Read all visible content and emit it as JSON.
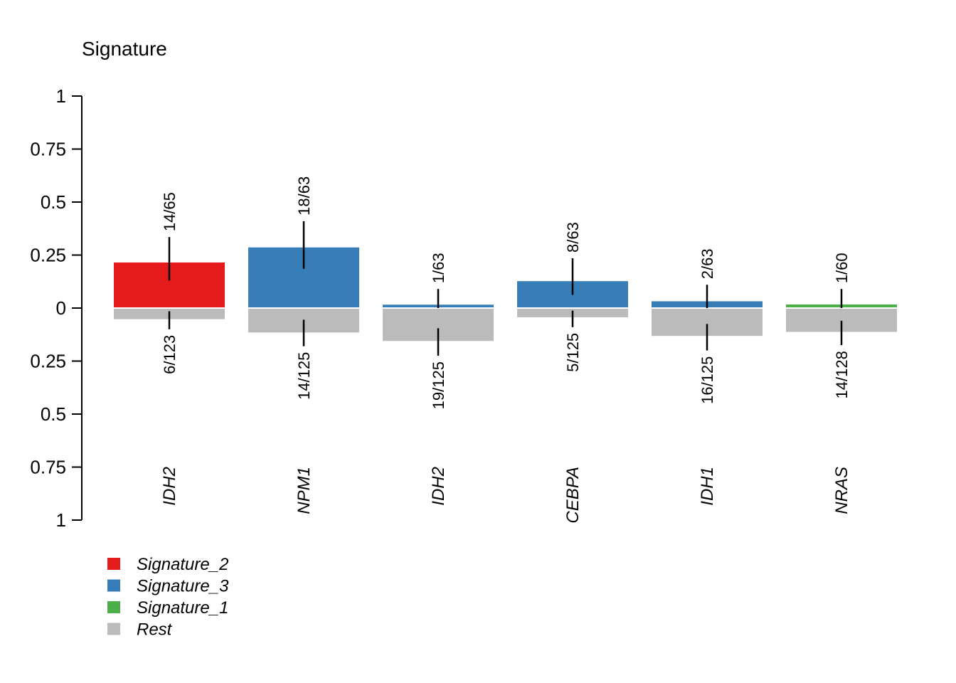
{
  "chart_data": {
    "type": "bar",
    "title": "Signature",
    "ylim": [
      -1,
      1
    ],
    "yticks": {
      "values": [
        1,
        0.75,
        0.5,
        0.25,
        0,
        -0.25,
        -0.5,
        -0.75,
        -1
      ],
      "labels": [
        "1",
        "0.75",
        "0.5",
        "0.25",
        "0",
        "0.25",
        "0.5",
        "0.75",
        "1"
      ]
    },
    "categories": [
      "IDH2",
      "NPM1",
      "IDH2",
      "CEBPA",
      "IDH1",
      "NRAS"
    ],
    "bars": [
      {
        "gene": "IDH2",
        "signature": "Signature_2",
        "up": 0.215,
        "up_lo": 0.13,
        "up_hi": 0.335,
        "up_label": "14/65",
        "down": 0.049,
        "down_lo": 0.015,
        "down_hi": 0.1,
        "down_label": "6/123"
      },
      {
        "gene": "NPM1",
        "signature": "Signature_3",
        "up": 0.286,
        "up_lo": 0.185,
        "up_hi": 0.41,
        "up_label": "18/63",
        "down": 0.112,
        "down_lo": 0.055,
        "down_hi": 0.18,
        "down_label": "14/125"
      },
      {
        "gene": "IDH2",
        "signature": "Signature_3",
        "up": 0.016,
        "up_lo": 0.0,
        "up_hi": 0.09,
        "up_label": "1/63",
        "down": 0.152,
        "down_lo": 0.095,
        "down_hi": 0.225,
        "down_label": "19/125"
      },
      {
        "gene": "CEBPA",
        "signature": "Signature_3",
        "up": 0.127,
        "up_lo": 0.062,
        "up_hi": 0.235,
        "up_label": "8/63",
        "down": 0.04,
        "down_lo": 0.012,
        "down_hi": 0.09,
        "down_label": "5/125"
      },
      {
        "gene": "IDH1",
        "signature": "Signature_3",
        "up": 0.032,
        "up_lo": 0.0,
        "up_hi": 0.11,
        "up_label": "2/63",
        "down": 0.128,
        "down_lo": 0.075,
        "down_hi": 0.2,
        "down_label": "16/125"
      },
      {
        "gene": "NRAS",
        "signature": "Signature_1",
        "up": 0.017,
        "up_lo": 0.0,
        "up_hi": 0.09,
        "up_label": "1/60",
        "down": 0.109,
        "down_lo": 0.06,
        "down_hi": 0.175,
        "down_label": "14/128"
      }
    ],
    "legend": {
      "position": "bottom-left",
      "entries": [
        {
          "label": "Signature_2",
          "color": "#e41a1c"
        },
        {
          "label": "Signature_3",
          "color": "#377eb8"
        },
        {
          "label": "Signature_1",
          "color": "#4daf4a"
        },
        {
          "label": "Rest",
          "color": "#bbbbbb"
        }
      ]
    },
    "colors": {
      "Signature_2": "#e41a1c",
      "Signature_3": "#377eb8",
      "Signature_1": "#4daf4a",
      "Rest": "#bbbbbb"
    },
    "grid": false
  }
}
